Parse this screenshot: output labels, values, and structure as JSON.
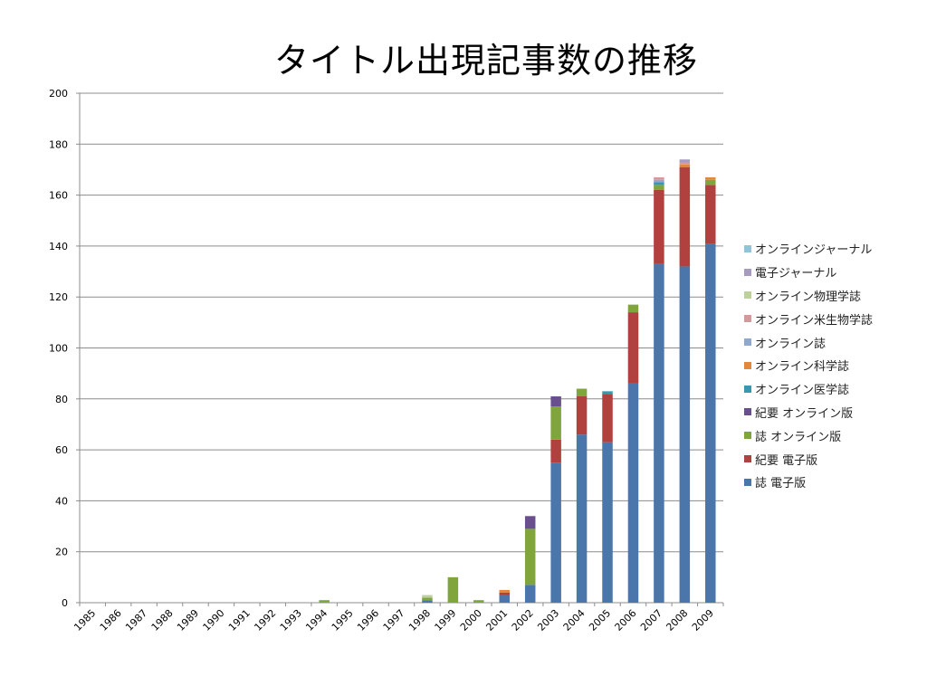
{
  "chart_data": {
    "type": "bar",
    "stacked": true,
    "title": "タイトル出現記事数の推移",
    "xlabel": "",
    "ylabel": "",
    "ylim": [
      0,
      200
    ],
    "yticks": [
      "0",
      "20",
      "40",
      "60",
      "80",
      "100",
      "120",
      "140",
      "160",
      "180",
      "200"
    ],
    "grid": true,
    "legend_position": "right",
    "categories": [
      "1985",
      "1986",
      "1987",
      "1988",
      "1989",
      "1990",
      "1991",
      "1992",
      "1993",
      "1994",
      "1995",
      "1996",
      "1997",
      "1998",
      "1999",
      "2000",
      "2001",
      "2002",
      "2003",
      "2004",
      "2005",
      "2006",
      "2007",
      "2008",
      "2009"
    ],
    "series": [
      {
        "name": "誌 電子版",
        "color": "#4a76ab",
        "values": [
          0,
          0,
          0,
          0,
          0,
          0,
          0,
          0,
          0,
          0,
          0,
          0,
          0,
          1,
          0,
          0,
          3,
          7,
          55,
          66,
          63,
          86,
          133,
          132,
          141
        ]
      },
      {
        "name": "紀要 電子版",
        "color": "#b0413e",
        "values": [
          0,
          0,
          0,
          0,
          0,
          0,
          0,
          0,
          0,
          0,
          0,
          0,
          0,
          0,
          0,
          0,
          1,
          0,
          9,
          15,
          19,
          28,
          29,
          39,
          23
        ]
      },
      {
        "name": "誌 オンライン版",
        "color": "#7fa53c",
        "values": [
          0,
          0,
          0,
          0,
          0,
          0,
          0,
          0,
          0,
          1,
          0,
          0,
          0,
          1,
          10,
          1,
          0,
          22,
          13,
          3,
          0,
          3,
          2,
          0,
          2
        ]
      },
      {
        "name": "紀要 オンライン版",
        "color": "#6a4f8e",
        "values": [
          0,
          0,
          0,
          0,
          0,
          0,
          0,
          0,
          0,
          0,
          0,
          0,
          0,
          0,
          0,
          0,
          0,
          5,
          4,
          0,
          0,
          0,
          0,
          0,
          0
        ]
      },
      {
        "name": "オンライン医学誌",
        "color": "#3a97b0",
        "values": [
          0,
          0,
          0,
          0,
          0,
          0,
          0,
          0,
          0,
          0,
          0,
          0,
          0,
          0,
          0,
          0,
          0,
          0,
          0,
          0,
          1,
          0,
          1,
          0,
          0
        ]
      },
      {
        "name": "オンライン科学誌",
        "color": "#e3883a",
        "values": [
          0,
          0,
          0,
          0,
          0,
          0,
          0,
          0,
          0,
          0,
          0,
          0,
          0,
          0,
          0,
          0,
          1,
          0,
          0,
          0,
          0,
          0,
          0,
          1,
          1
        ]
      },
      {
        "name": "オンライン誌",
        "color": "#8fa8d0",
        "values": [
          0,
          0,
          0,
          0,
          0,
          0,
          0,
          0,
          0,
          0,
          0,
          0,
          0,
          0,
          0,
          0,
          0,
          0,
          0,
          0,
          0,
          0,
          1,
          0,
          0
        ]
      },
      {
        "name": "オンライン米生物学誌",
        "color": "#d4999a",
        "values": [
          0,
          0,
          0,
          0,
          0,
          0,
          0,
          0,
          0,
          0,
          0,
          0,
          0,
          0,
          0,
          0,
          0,
          0,
          0,
          0,
          0,
          0,
          1,
          1,
          0
        ]
      },
      {
        "name": "オンライン物理学誌",
        "color": "#bcd29a",
        "values": [
          0,
          0,
          0,
          0,
          0,
          0,
          0,
          0,
          0,
          0,
          0,
          0,
          0,
          1,
          0,
          0,
          0,
          0,
          0,
          0,
          0,
          0,
          0,
          0,
          0
        ]
      },
      {
        "name": "電子ジャーナル",
        "color": "#a79cc0",
        "values": [
          0,
          0,
          0,
          0,
          0,
          0,
          0,
          0,
          0,
          0,
          0,
          0,
          0,
          0,
          0,
          0,
          0,
          0,
          0,
          0,
          0,
          0,
          0,
          1,
          0
        ]
      },
      {
        "name": "オンラインジャーナル",
        "color": "#92c3d8",
        "values": [
          0,
          0,
          0,
          0,
          0,
          0,
          0,
          0,
          0,
          0,
          0,
          0,
          0,
          0,
          0,
          0,
          0,
          0,
          0,
          0,
          0,
          0,
          0,
          0,
          0
        ]
      }
    ]
  }
}
